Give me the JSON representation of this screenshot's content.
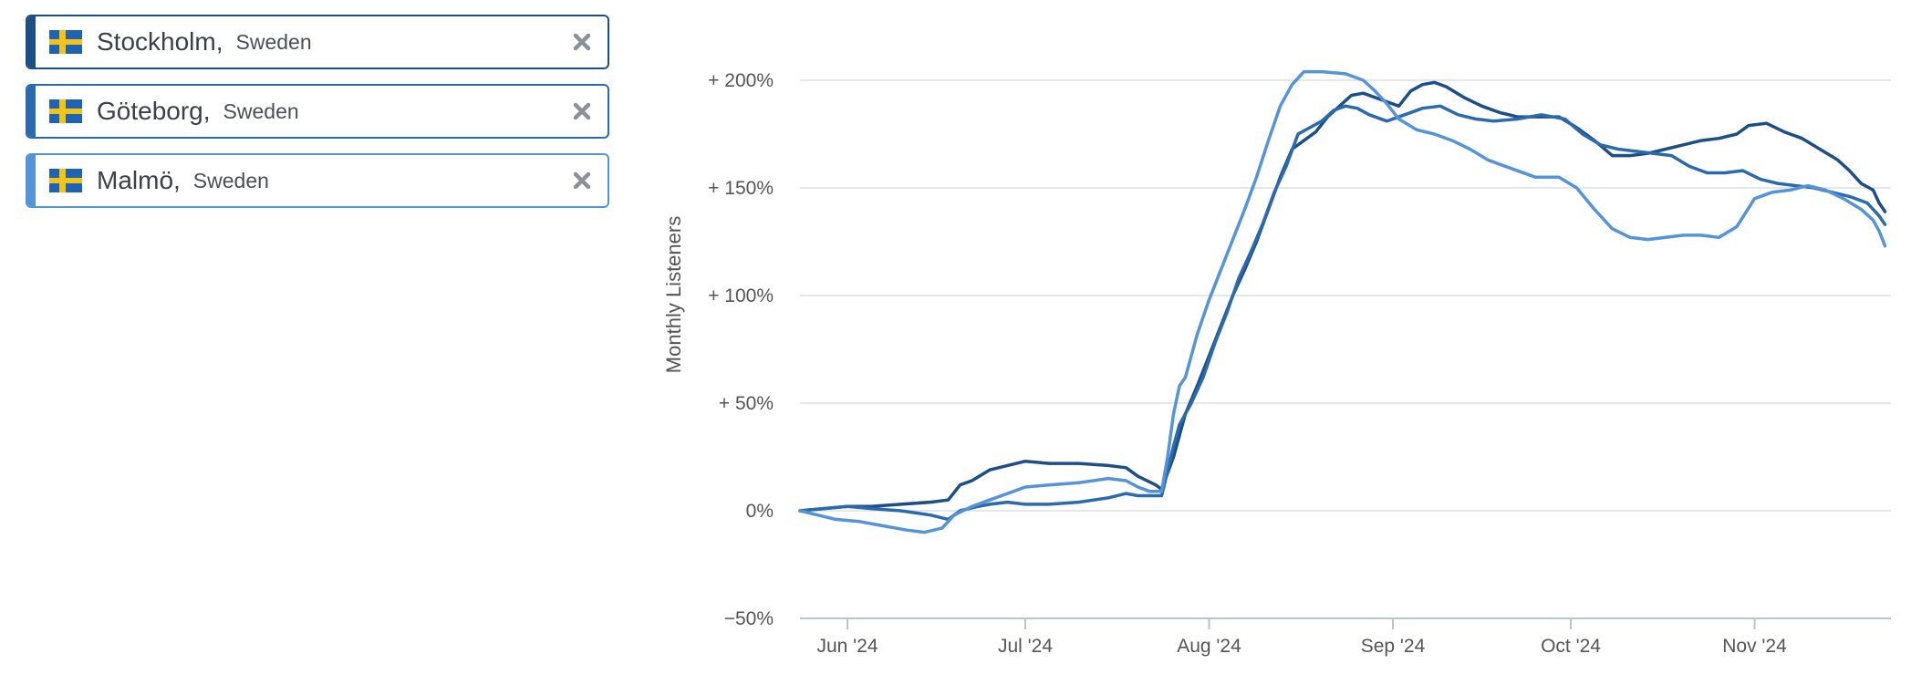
{
  "cities": [
    {
      "city": "Stockholm,",
      "country": "Sweden",
      "color": "#1d4f86",
      "flag_icon": "sweden-flag-icon",
      "remove_icon": "close-icon"
    },
    {
      "city": "Göteborg,",
      "country": "Sweden",
      "color": "#2c6aae",
      "flag_icon": "sweden-flag-icon",
      "remove_icon": "close-icon"
    },
    {
      "city": "Malmö,",
      "country": "Sweden",
      "color": "#5594d8",
      "flag_icon": "sweden-flag-icon",
      "remove_icon": "close-icon"
    }
  ],
  "chart_data": {
    "type": "line",
    "ylabel": "Monthly Listeners",
    "ylim": [
      -50,
      220
    ],
    "yticks": [
      -50,
      0,
      50,
      100,
      150,
      200
    ],
    "ytick_labels": [
      "−50%",
      "0%",
      "+ 50%",
      "+ 100%",
      "+ 150%",
      "+ 200%"
    ],
    "xlim": [
      "2024-05-24",
      "2024-11-24"
    ],
    "xticks": [
      "2024-06-01",
      "2024-07-01",
      "2024-08-01",
      "2024-09-01",
      "2024-10-01",
      "2024-11-01"
    ],
    "xtick_labels": [
      "Jun '24",
      "Jul '24",
      "Aug '24",
      "Sep '24",
      "Oct '24",
      "Nov '24"
    ],
    "grid": "horizontal",
    "series": [
      {
        "name": "Stockholm",
        "color": "#1d4f86",
        "points": [
          [
            "2024-05-24",
            0
          ],
          [
            "2024-05-28",
            1
          ],
          [
            "2024-06-01",
            2
          ],
          [
            "2024-06-05",
            2
          ],
          [
            "2024-06-10",
            3
          ],
          [
            "2024-06-15",
            4
          ],
          [
            "2024-06-18",
            5
          ],
          [
            "2024-06-20",
            12
          ],
          [
            "2024-06-22",
            14
          ],
          [
            "2024-06-25",
            19
          ],
          [
            "2024-06-28",
            21
          ],
          [
            "2024-07-01",
            23
          ],
          [
            "2024-07-05",
            22
          ],
          [
            "2024-07-10",
            22
          ],
          [
            "2024-07-15",
            21
          ],
          [
            "2024-07-18",
            20
          ],
          [
            "2024-07-20",
            16
          ],
          [
            "2024-07-23",
            12
          ],
          [
            "2024-07-24",
            10
          ],
          [
            "2024-07-26",
            25
          ],
          [
            "2024-07-27",
            35
          ],
          [
            "2024-07-28",
            45
          ],
          [
            "2024-07-30",
            58
          ],
          [
            "2024-08-01",
            72
          ],
          [
            "2024-08-03",
            86
          ],
          [
            "2024-08-05",
            100
          ],
          [
            "2024-08-07",
            112
          ],
          [
            "2024-08-09",
            125
          ],
          [
            "2024-08-11",
            140
          ],
          [
            "2024-08-13",
            155
          ],
          [
            "2024-08-15",
            168
          ],
          [
            "2024-08-17",
            172
          ],
          [
            "2024-08-19",
            176
          ],
          [
            "2024-08-21",
            183
          ],
          [
            "2024-08-23",
            188
          ],
          [
            "2024-08-25",
            193
          ],
          [
            "2024-08-27",
            194
          ],
          [
            "2024-08-29",
            192
          ],
          [
            "2024-08-31",
            190
          ],
          [
            "2024-09-02",
            188
          ],
          [
            "2024-09-04",
            195
          ],
          [
            "2024-09-06",
            198
          ],
          [
            "2024-09-08",
            199
          ],
          [
            "2024-09-10",
            197
          ],
          [
            "2024-09-13",
            192
          ],
          [
            "2024-09-16",
            188
          ],
          [
            "2024-09-19",
            185
          ],
          [
            "2024-09-22",
            183
          ],
          [
            "2024-09-26",
            183
          ],
          [
            "2024-09-29",
            183
          ],
          [
            "2024-10-02",
            178
          ],
          [
            "2024-10-05",
            172
          ],
          [
            "2024-10-08",
            165
          ],
          [
            "2024-10-11",
            165
          ],
          [
            "2024-10-14",
            166
          ],
          [
            "2024-10-17",
            168
          ],
          [
            "2024-10-20",
            170
          ],
          [
            "2024-10-23",
            172
          ],
          [
            "2024-10-26",
            173
          ],
          [
            "2024-10-29",
            175
          ],
          [
            "2024-10-31",
            179
          ],
          [
            "2024-11-03",
            180
          ],
          [
            "2024-11-06",
            176
          ],
          [
            "2024-11-09",
            173
          ],
          [
            "2024-11-12",
            168
          ],
          [
            "2024-11-15",
            163
          ],
          [
            "2024-11-17",
            158
          ],
          [
            "2024-11-19",
            152
          ],
          [
            "2024-11-21",
            149
          ],
          [
            "2024-11-22",
            143
          ],
          [
            "2024-11-23",
            139
          ]
        ]
      },
      {
        "name": "Göteborg",
        "color": "#2c6aae",
        "points": [
          [
            "2024-05-24",
            0
          ],
          [
            "2024-05-28",
            1
          ],
          [
            "2024-06-01",
            2
          ],
          [
            "2024-06-05",
            1
          ],
          [
            "2024-06-10",
            0
          ],
          [
            "2024-06-15",
            -2
          ],
          [
            "2024-06-18",
            -4
          ],
          [
            "2024-06-20",
            0
          ],
          [
            "2024-06-23",
            2
          ],
          [
            "2024-06-25",
            3
          ],
          [
            "2024-06-28",
            4
          ],
          [
            "2024-07-01",
            3
          ],
          [
            "2024-07-05",
            3
          ],
          [
            "2024-07-10",
            4
          ],
          [
            "2024-07-15",
            6
          ],
          [
            "2024-07-18",
            8
          ],
          [
            "2024-07-20",
            7
          ],
          [
            "2024-07-23",
            7
          ],
          [
            "2024-07-24",
            7
          ],
          [
            "2024-07-26",
            30
          ],
          [
            "2024-07-27",
            40
          ],
          [
            "2024-07-29",
            50
          ],
          [
            "2024-07-31",
            62
          ],
          [
            "2024-08-02",
            78
          ],
          [
            "2024-08-04",
            92
          ],
          [
            "2024-08-06",
            108
          ],
          [
            "2024-08-08",
            120
          ],
          [
            "2024-08-10",
            133
          ],
          [
            "2024-08-12",
            148
          ],
          [
            "2024-08-14",
            160
          ],
          [
            "2024-08-16",
            175
          ],
          [
            "2024-08-18",
            178
          ],
          [
            "2024-08-20",
            181
          ],
          [
            "2024-08-22",
            186
          ],
          [
            "2024-08-24",
            188
          ],
          [
            "2024-08-26",
            187
          ],
          [
            "2024-08-28",
            184
          ],
          [
            "2024-08-31",
            181
          ],
          [
            "2024-09-03",
            184
          ],
          [
            "2024-09-06",
            187
          ],
          [
            "2024-09-09",
            188
          ],
          [
            "2024-09-12",
            184
          ],
          [
            "2024-09-15",
            182
          ],
          [
            "2024-09-18",
            181
          ],
          [
            "2024-09-22",
            182
          ],
          [
            "2024-09-26",
            184
          ],
          [
            "2024-09-30",
            182
          ],
          [
            "2024-10-03",
            175
          ],
          [
            "2024-10-06",
            170
          ],
          [
            "2024-10-09",
            168
          ],
          [
            "2024-10-12",
            167
          ],
          [
            "2024-10-15",
            166
          ],
          [
            "2024-10-18",
            165
          ],
          [
            "2024-10-21",
            160
          ],
          [
            "2024-10-24",
            157
          ],
          [
            "2024-10-27",
            157
          ],
          [
            "2024-10-30",
            158
          ],
          [
            "2024-11-02",
            154
          ],
          [
            "2024-11-05",
            152
          ],
          [
            "2024-11-08",
            151
          ],
          [
            "2024-11-11",
            150
          ],
          [
            "2024-11-14",
            148
          ],
          [
            "2024-11-17",
            146
          ],
          [
            "2024-11-20",
            143
          ],
          [
            "2024-11-22",
            137
          ],
          [
            "2024-11-23",
            133
          ]
        ]
      },
      {
        "name": "Malmö",
        "color": "#5594d8",
        "points": [
          [
            "2024-05-24",
            0
          ],
          [
            "2024-05-27",
            -2
          ],
          [
            "2024-05-30",
            -4
          ],
          [
            "2024-06-03",
            -5
          ],
          [
            "2024-06-07",
            -7
          ],
          [
            "2024-06-11",
            -9
          ],
          [
            "2024-06-14",
            -10
          ],
          [
            "2024-06-17",
            -8
          ],
          [
            "2024-06-19",
            -2
          ],
          [
            "2024-06-22",
            2
          ],
          [
            "2024-06-25",
            5
          ],
          [
            "2024-06-28",
            8
          ],
          [
            "2024-07-01",
            11
          ],
          [
            "2024-07-05",
            12
          ],
          [
            "2024-07-10",
            13
          ],
          [
            "2024-07-15",
            15
          ],
          [
            "2024-07-18",
            14
          ],
          [
            "2024-07-20",
            11
          ],
          [
            "2024-07-22",
            9
          ],
          [
            "2024-07-24",
            9
          ],
          [
            "2024-07-25",
            25
          ],
          [
            "2024-07-26",
            45
          ],
          [
            "2024-07-27",
            58
          ],
          [
            "2024-07-28",
            62
          ],
          [
            "2024-07-30",
            82
          ],
          [
            "2024-08-01",
            98
          ],
          [
            "2024-08-03",
            112
          ],
          [
            "2024-08-05",
            126
          ],
          [
            "2024-08-07",
            140
          ],
          [
            "2024-08-09",
            155
          ],
          [
            "2024-08-11",
            172
          ],
          [
            "2024-08-13",
            188
          ],
          [
            "2024-08-15",
            198
          ],
          [
            "2024-08-17",
            204
          ],
          [
            "2024-08-20",
            204
          ],
          [
            "2024-08-24",
            203
          ],
          [
            "2024-08-27",
            200
          ],
          [
            "2024-08-29",
            195
          ],
          [
            "2024-08-31",
            189
          ],
          [
            "2024-09-02",
            182
          ],
          [
            "2024-09-05",
            177
          ],
          [
            "2024-09-08",
            175
          ],
          [
            "2024-09-11",
            172
          ],
          [
            "2024-09-14",
            168
          ],
          [
            "2024-09-17",
            163
          ],
          [
            "2024-09-21",
            159
          ],
          [
            "2024-09-25",
            155
          ],
          [
            "2024-09-29",
            155
          ],
          [
            "2024-10-02",
            150
          ],
          [
            "2024-10-05",
            140
          ],
          [
            "2024-10-08",
            131
          ],
          [
            "2024-10-11",
            127
          ],
          [
            "2024-10-14",
            126
          ],
          [
            "2024-10-17",
            127
          ],
          [
            "2024-10-20",
            128
          ],
          [
            "2024-10-23",
            128
          ],
          [
            "2024-10-26",
            127
          ],
          [
            "2024-10-29",
            132
          ],
          [
            "2024-11-01",
            145
          ],
          [
            "2024-11-04",
            148
          ],
          [
            "2024-11-07",
            149
          ],
          [
            "2024-11-10",
            151
          ],
          [
            "2024-11-13",
            149
          ],
          [
            "2024-11-16",
            145
          ],
          [
            "2024-11-19",
            140
          ],
          [
            "2024-11-21",
            135
          ],
          [
            "2024-11-22",
            130
          ],
          [
            "2024-11-23",
            123
          ]
        ]
      }
    ]
  }
}
